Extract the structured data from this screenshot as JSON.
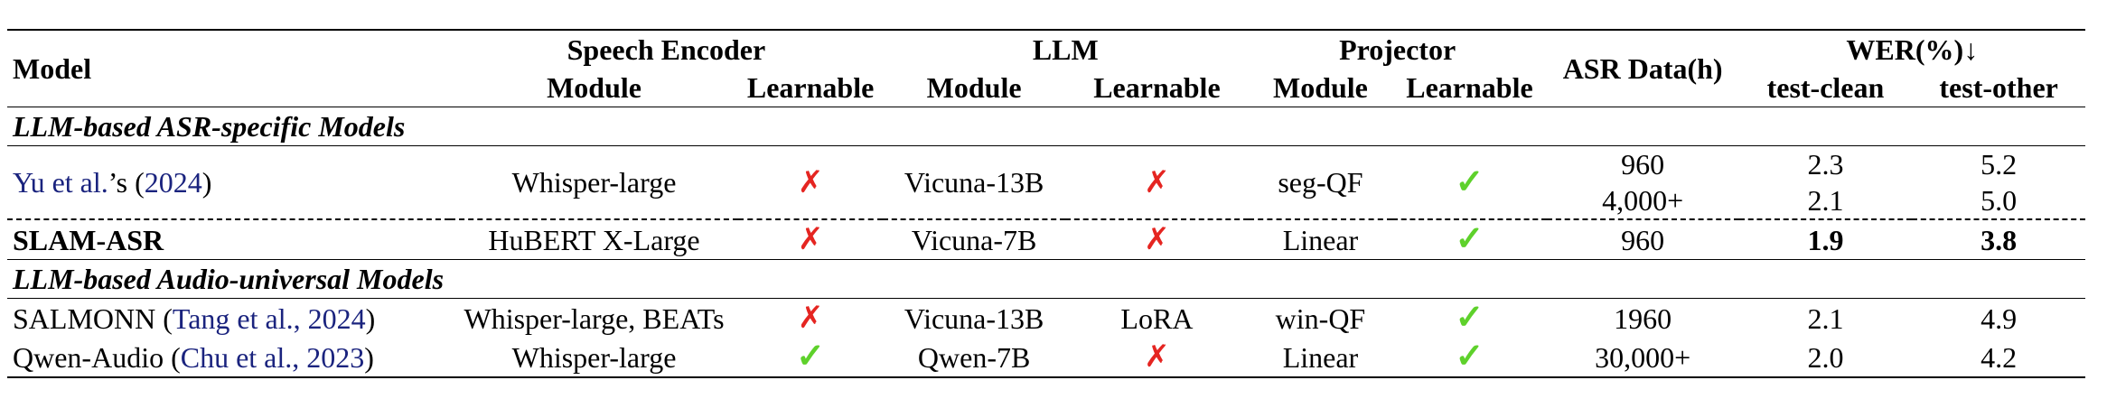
{
  "headers": {
    "model": "Model",
    "speech_encoder": "Speech Encoder",
    "llm": "LLM",
    "projector": "Projector",
    "asr_data": "ASR Data(h)",
    "wer": "WER(%)↓",
    "module": "Module",
    "learnable": "Learnable",
    "test_clean": "test-clean",
    "test_other": "test-other"
  },
  "sections": {
    "asr_specific": "LLM-based ASR-specific Models",
    "audio_universal": "LLM-based Audio-universal Models"
  },
  "symbols": {
    "cross": "✗",
    "check": "✓"
  },
  "rows": {
    "yu": {
      "model_name": "Yu et al.",
      "model_suffix": "’s (",
      "model_year": "2024",
      "model_close": ")",
      "encoder": "Whisper-large",
      "llm": "Vicuna-13B",
      "projector": "seg-QF",
      "asr_data": [
        "960",
        "4,000+"
      ],
      "test_clean": [
        "2.3",
        "2.1"
      ],
      "test_other": [
        "5.2",
        "5.0"
      ]
    },
    "slam": {
      "model": "SLAM-ASR",
      "encoder": "HuBERT X-Large",
      "llm": "Vicuna-7B",
      "projector": "Linear",
      "asr_data": "960",
      "test_clean": "1.9",
      "test_other": "3.8"
    },
    "salmonn": {
      "model_name": "SALMONN (",
      "model_cite": "Tang et al., 2024",
      "model_close": ")",
      "encoder": "Whisper-large, BEATs",
      "llm": "Vicuna-13B",
      "llm_learnable": "LoRA",
      "projector": "win-QF",
      "asr_data": "1960",
      "test_clean": "2.1",
      "test_other": "4.9"
    },
    "qwen": {
      "model_name": "Qwen-Audio (",
      "model_cite": "Chu et al., 2023",
      "model_close": ")",
      "encoder": "Whisper-large",
      "llm": "Qwen-7B",
      "projector": "Linear",
      "asr_data": "30,000+",
      "test_clean": "2.0",
      "test_other": "4.2"
    }
  },
  "colors": {
    "cross": "#e52521",
    "check": "#5ed12b",
    "citation": "#1a237e"
  }
}
